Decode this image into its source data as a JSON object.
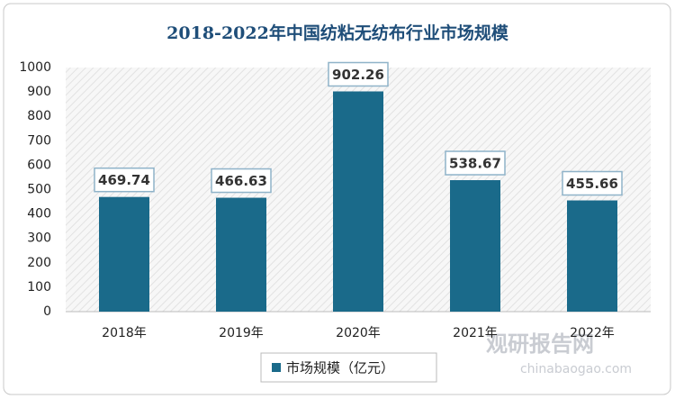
{
  "chart_data": {
    "type": "bar",
    "title": "2018-2022年中国纺粘无纺布行业市场规模",
    "categories": [
      "2018年",
      "2019年",
      "2020年",
      "2021年",
      "2022年"
    ],
    "series": [
      {
        "name": "市场规模（亿元）",
        "color": "#1a6a8a",
        "values": [
          469.74,
          466.63,
          902.26,
          538.67,
          455.66
        ]
      }
    ],
    "ylim": [
      0,
      1000
    ],
    "yticks": [
      0,
      100,
      200,
      300,
      400,
      500,
      600,
      700,
      800,
      900,
      1000
    ],
    "grid": false,
    "legend": "bottom",
    "watermark": {
      "name": "观研报告网",
      "site": "chinabaogao.com"
    }
  }
}
